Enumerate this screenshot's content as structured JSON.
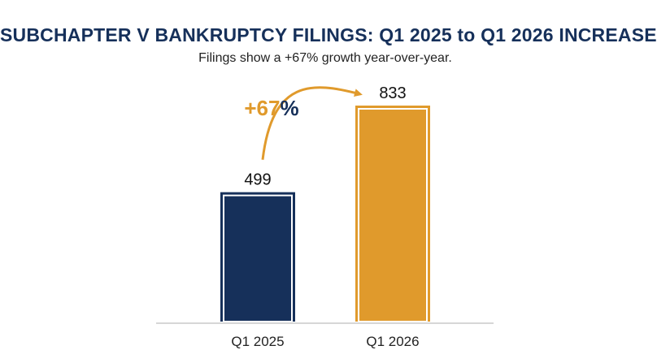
{
  "title": "SUBCHAPTER V BANKRUPTCY FILINGS: Q1 2025 to Q1 2026 INCREASE",
  "subtitle": "Filings show a +67% growth year-over-year.",
  "annotation": {
    "number": "+67",
    "percent_sign": "%",
    "number_color": "#e09a2c",
    "sign_color": "#16305a"
  },
  "chart_data": {
    "type": "bar",
    "categories": [
      "Q1 2025",
      "Q1 2026"
    ],
    "values": [
      499,
      833
    ],
    "data_labels": [
      "499",
      "833"
    ],
    "colors": [
      "#16305a",
      "#e09a2c"
    ],
    "arrow_color": "#e09a2c",
    "ylim": [
      0,
      833
    ],
    "grid": false,
    "legend": "none"
  }
}
